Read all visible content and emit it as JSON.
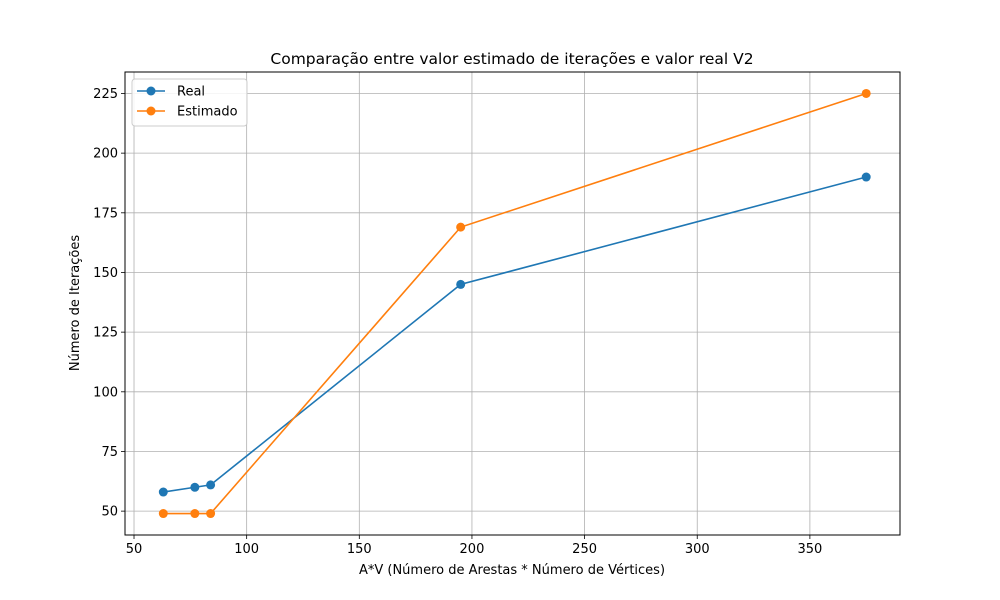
{
  "chart_data": {
    "type": "line",
    "title": "Comparação entre valor estimado de iterações e valor real V2",
    "xlabel": "A*V (Número de Arestas * Número de Vértices)",
    "ylabel": "Número de Iterações",
    "xlim": [
      46,
      390
    ],
    "ylim": [
      40,
      234
    ],
    "xticks": [
      50,
      100,
      150,
      200,
      250,
      300,
      350
    ],
    "yticks": [
      50,
      75,
      100,
      125,
      150,
      175,
      200,
      225
    ],
    "grid": true,
    "legend_position": "top-left",
    "x": [
      63,
      77,
      84,
      195,
      375
    ],
    "series": [
      {
        "name": "Real",
        "color": "#1f77b4",
        "values": [
          58,
          60,
          61,
          145,
          190
        ]
      },
      {
        "name": "Estimado",
        "color": "#ff7f0e",
        "values": [
          49,
          49,
          49,
          169,
          225
        ]
      }
    ]
  }
}
